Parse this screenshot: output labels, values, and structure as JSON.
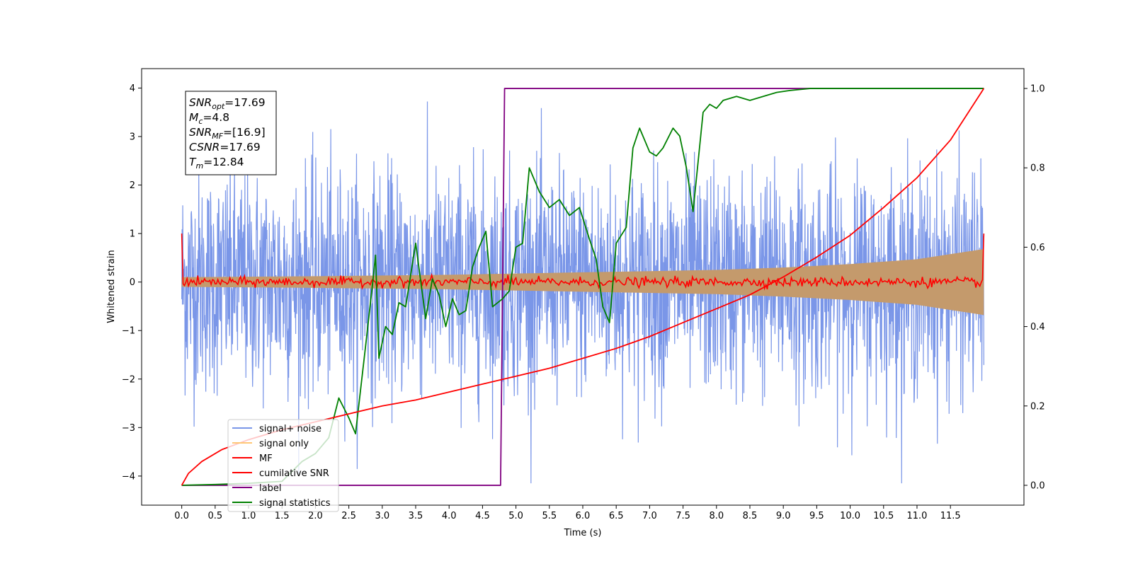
{
  "chart_data": {
    "type": "line",
    "title": "",
    "xlabel": "Time (s)",
    "ylabel": "Whitened strain",
    "xlim": [
      -0.6,
      12.6
    ],
    "ylim": [
      -4.6,
      4.4
    ],
    "y2lim": [
      -0.05,
      1.05
    ],
    "x_ticks": [
      "0.0",
      "0.5",
      "1.0",
      "1.5",
      "2.0",
      "2.5",
      "3.0",
      "3.5",
      "4.0",
      "4.5",
      "5.0",
      "5.5",
      "6.0",
      "6.5",
      "7.0",
      "7.5",
      "8.0",
      "8.5",
      "9.0",
      "9.5",
      "10.0",
      "10.5",
      "11.0",
      "11.5"
    ],
    "y_ticks": [
      "4",
      "3",
      "2",
      "1",
      "0",
      "−1",
      "−2",
      "−3",
      "−4"
    ],
    "y2_ticks": [
      "1.0",
      "0.8",
      "0.6",
      "0.4",
      "0.2",
      "0.0"
    ],
    "grid": false,
    "legend": {
      "placement": "lower-left",
      "entries": [
        {
          "label": "signal+ noise",
          "color": "#7a96e8"
        },
        {
          "label": "signal only",
          "color": "#ffc777"
        },
        {
          "label": "MF",
          "color": "#ff0000"
        },
        {
          "label": "cumilative SNR",
          "color": "#ff0000"
        },
        {
          "label": "label",
          "color": "#800080"
        },
        {
          "label": "signal statistics",
          "color": "#008000"
        }
      ]
    },
    "annotation": [
      {
        "base": "SNR",
        "sub": "opt",
        "value": "=17.69"
      },
      {
        "base": "M",
        "sub": "c",
        "value": "=4.8"
      },
      {
        "base": "SNR",
        "sub": "MF",
        "value": "=[16.9]"
      },
      {
        "base": "CSNR",
        "sub": "",
        "value": "=17.69"
      },
      {
        "base": "T",
        "sub": "m",
        "value": "=12.84"
      }
    ],
    "series": [
      {
        "name": "signal+ noise",
        "axis": "left",
        "color": "#7a96e8",
        "x_range": [
          0,
          12
        ],
        "typical_range": [
          -2.5,
          2.5
        ],
        "extremes": [
          -4.15,
          3.98
        ]
      },
      {
        "name": "signal only",
        "axis": "left",
        "color": "#c49a6c",
        "envelope_x": [
          0,
          2,
          4,
          6,
          8,
          9,
          10,
          11,
          12
        ],
        "envelope_amp": [
          0.1,
          0.12,
          0.15,
          0.2,
          0.25,
          0.3,
          0.37,
          0.47,
          0.68
        ]
      },
      {
        "name": "MF",
        "axis": "left",
        "color": "#ff0000",
        "endpoints": {
          "x": [
            0,
            12
          ],
          "y": [
            1.0,
            1.0
          ]
        },
        "baseline": 0.0,
        "noise_amplitude": 0.07
      },
      {
        "name": "cumilative SNR",
        "axis": "right",
        "color": "#ff0000",
        "x": [
          0,
          0.1,
          0.3,
          0.6,
          1,
          1.5,
          2,
          2.5,
          3,
          3.5,
          4,
          4.5,
          5,
          5.5,
          6,
          6.5,
          7,
          7.5,
          8,
          8.5,
          9,
          9.5,
          10,
          10.5,
          11,
          11.5,
          12
        ],
        "values": [
          0.0,
          0.03,
          0.06,
          0.09,
          0.115,
          0.14,
          0.16,
          0.18,
          0.2,
          0.215,
          0.235,
          0.255,
          0.275,
          0.295,
          0.32,
          0.345,
          0.375,
          0.41,
          0.445,
          0.48,
          0.525,
          0.575,
          0.63,
          0.7,
          0.775,
          0.87,
          1.0
        ]
      },
      {
        "name": "label",
        "axis": "right",
        "color": "#800080",
        "x": [
          0,
          4.77,
          4.83,
          12
        ],
        "values": [
          0,
          0,
          1,
          1
        ]
      },
      {
        "name": "signal statistics",
        "axis": "right",
        "color": "#008000",
        "x": [
          0,
          0.5,
          1,
          1.5,
          1.8,
          2.0,
          2.2,
          2.35,
          2.5,
          2.6,
          2.75,
          2.85,
          2.9,
          2.95,
          3.05,
          3.15,
          3.25,
          3.35,
          3.5,
          3.65,
          3.75,
          3.85,
          3.95,
          4.05,
          4.15,
          4.25,
          4.35,
          4.45,
          4.55,
          4.65,
          4.8,
          4.9,
          5.0,
          5.1,
          5.2,
          5.35,
          5.5,
          5.65,
          5.8,
          5.95,
          6.1,
          6.2,
          6.3,
          6.4,
          6.5,
          6.65,
          6.75,
          6.85,
          7.0,
          7.1,
          7.2,
          7.35,
          7.45,
          7.55,
          7.65,
          7.8,
          7.9,
          8.0,
          8.1,
          8.3,
          8.5,
          8.7,
          8.9,
          9.1,
          9.4,
          10.0,
          11.0,
          12.0
        ],
        "values": [
          0.0,
          0.002,
          0.005,
          0.01,
          0.06,
          0.08,
          0.12,
          0.22,
          0.17,
          0.13,
          0.35,
          0.5,
          0.58,
          0.32,
          0.4,
          0.38,
          0.46,
          0.45,
          0.61,
          0.42,
          0.52,
          0.48,
          0.4,
          0.47,
          0.43,
          0.44,
          0.55,
          0.6,
          0.64,
          0.45,
          0.47,
          0.49,
          0.6,
          0.61,
          0.8,
          0.74,
          0.7,
          0.72,
          0.68,
          0.7,
          0.62,
          0.57,
          0.45,
          0.41,
          0.61,
          0.65,
          0.85,
          0.9,
          0.84,
          0.83,
          0.85,
          0.9,
          0.88,
          0.8,
          0.69,
          0.94,
          0.96,
          0.95,
          0.97,
          0.98,
          0.97,
          0.98,
          0.99,
          0.995,
          1.0,
          1.0,
          1.0,
          1.0
        ]
      }
    ]
  }
}
